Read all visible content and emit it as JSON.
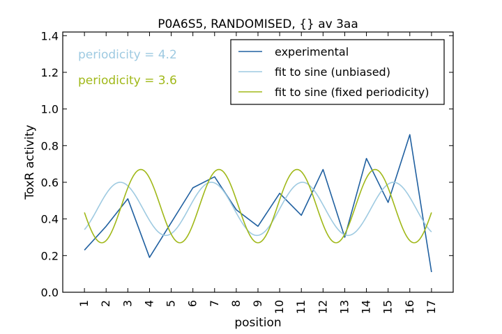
{
  "chart_data": {
    "type": "line",
    "title": "P0A6S5, RANDOMISED, {} av 3aa",
    "xlabel": "position",
    "ylabel": "ToxR activity",
    "xlim": [
      0,
      18
    ],
    "ylim": [
      0.0,
      1.42
    ],
    "x_ticks": [
      1,
      2,
      3,
      4,
      5,
      6,
      7,
      8,
      9,
      10,
      11,
      12,
      13,
      14,
      15,
      16,
      17
    ],
    "y_ticks": [
      "0.0",
      "0.2",
      "0.4",
      "0.6",
      "0.8",
      "1.0",
      "1.2",
      "1.4"
    ],
    "grid": false,
    "legend_position": "top-right",
    "series": [
      {
        "name": "experimental",
        "color": "#2060a0",
        "x": [
          1,
          2,
          3,
          4,
          5,
          6,
          7,
          8,
          9,
          10,
          11,
          12,
          13,
          14,
          15,
          16,
          17
        ],
        "y": [
          0.23,
          0.36,
          0.51,
          0.19,
          0.38,
          0.57,
          0.63,
          0.45,
          0.36,
          0.54,
          0.42,
          0.67,
          0.3,
          0.73,
          0.49,
          0.86,
          0.11
        ]
      },
      {
        "name": "fit to sine (unbiased)",
        "color": "#9ecae1",
        "function": "sine",
        "x_range": [
          1,
          17
        ],
        "mean": 0.455,
        "amplitude": 0.145,
        "period": 4.2,
        "peak_at": 2.65
      },
      {
        "name": "fit to sine (fixed periodicity)",
        "color": "#a0b818",
        "function": "sine",
        "x_range": [
          1,
          17
        ],
        "mean": 0.47,
        "amplitude": 0.2,
        "period": 3.6,
        "peak_at": 3.6
      }
    ],
    "annotations": [
      {
        "text": "periodicity = 4.2",
        "color": "#9ecae1"
      },
      {
        "text": "periodicity = 3.6",
        "color": "#a0b818"
      }
    ]
  }
}
